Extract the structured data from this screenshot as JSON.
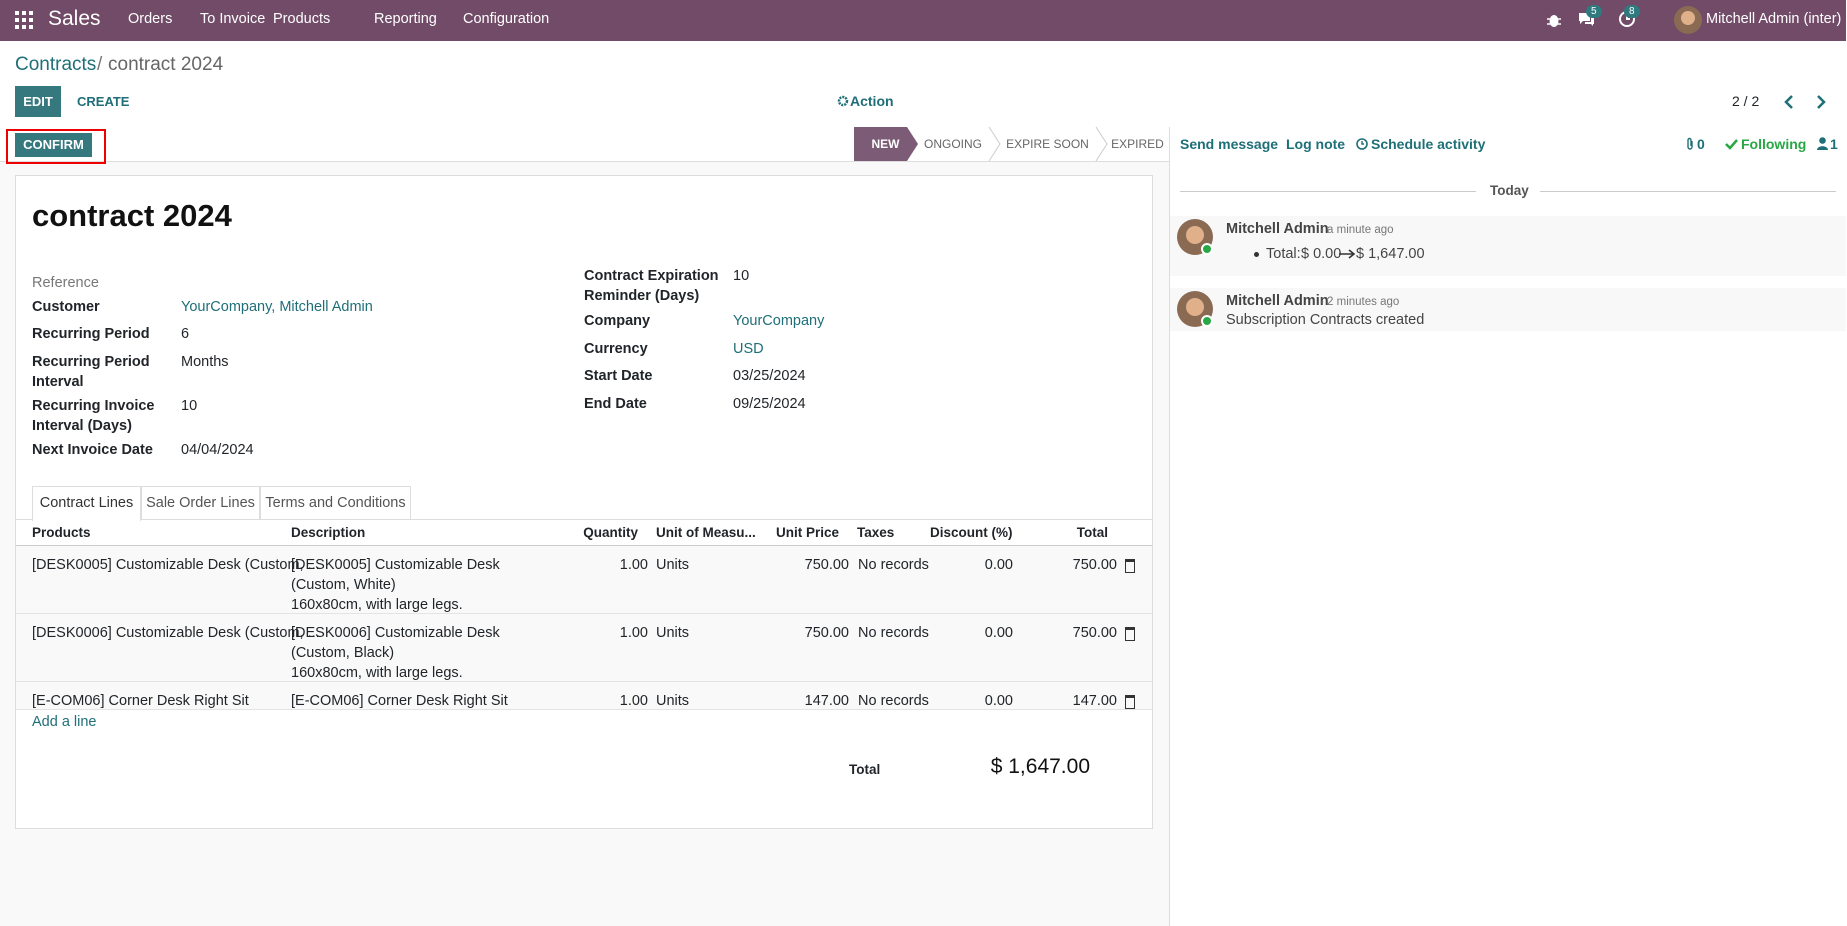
{
  "navbar": {
    "app": "Sales",
    "menu": [
      "Orders",
      "To Invoice",
      "Products",
      "Reporting",
      "Configuration"
    ],
    "messages_badge": "5",
    "activities_badge": "8",
    "user": "Mitchell Admin (inter)"
  },
  "breadcrumb": {
    "parent": "Contracts",
    "separator": "/",
    "current": "contract 2024"
  },
  "control_panel": {
    "edit": "EDIT",
    "create": "CREATE",
    "action": "Action",
    "pager": "2 / 2"
  },
  "statusbar": {
    "confirm": "CONFIRM",
    "stages": [
      "NEW",
      "ONGOING",
      "EXPIRE SOON",
      "EXPIRED"
    ],
    "active_stage": 0
  },
  "form": {
    "title": "contract 2024",
    "left_fields": [
      {
        "label": "Reference"
      },
      {
        "label": "Customer",
        "value": "YourCompany, Mitchell Admin",
        "link": true
      },
      {
        "label": "Recurring Period",
        "value": "6"
      },
      {
        "label": "Recurring Period Interval",
        "value": "Months"
      },
      {
        "label": "Recurring Invoice Interval (Days)",
        "value": "10"
      },
      {
        "label": "Next Invoice Date",
        "value": "04/04/2024"
      }
    ],
    "right_fields": [
      {
        "label": "Contract Expiration Reminder (Days)",
        "value": "10"
      },
      {
        "label": "Company",
        "value": "YourCompany",
        "link": true
      },
      {
        "label": "Currency",
        "value": "USD",
        "link": true
      },
      {
        "label": "Start Date",
        "value": "03/25/2024"
      },
      {
        "label": "End Date",
        "value": "09/25/2024"
      }
    ],
    "tabs": [
      "Contract Lines",
      "Sale Order Lines",
      "Terms and Conditions"
    ],
    "active_tab": 0,
    "lines": {
      "columns": [
        "Products",
        "Description",
        "Quantity",
        "Unit of Measu...",
        "Unit Price",
        "Taxes",
        "Discount (%)",
        "Total"
      ],
      "rows": [
        {
          "product": "[DESK0005] Customizable Desk (Custom, ...",
          "description": [
            "[DESK0005] Customizable Desk (Custom, White)",
            "160x80cm, with large legs."
          ],
          "quantity": "1.00",
          "uom": "Units",
          "unit_price": "750.00",
          "taxes": "No records",
          "discount": "0.00",
          "total": "750.00"
        },
        {
          "product": "[DESK0006] Customizable Desk (Custom, ...",
          "description": [
            "[DESK0006] Customizable Desk (Custom, Black)",
            "160x80cm, with large legs."
          ],
          "quantity": "1.00",
          "uom": "Units",
          "unit_price": "750.00",
          "taxes": "No records",
          "discount": "0.00",
          "total": "750.00"
        },
        {
          "product": "[E-COM06] Corner Desk Right Sit",
          "description": [
            "[E-COM06] Corner Desk Right Sit"
          ],
          "quantity": "1.00",
          "uom": "Units",
          "unit_price": "147.00",
          "taxes": "No records",
          "discount": "0.00",
          "total": "147.00"
        }
      ],
      "add_line": "Add a line"
    },
    "total": {
      "label": "Total",
      "amount": "$ 1,647.00"
    }
  },
  "chatter": {
    "send_message": "Send message",
    "log_note": "Log note",
    "schedule_activity": "Schedule activity",
    "attachments": "0",
    "following": "Following",
    "followers": "1",
    "date_separator": "Today",
    "messages": [
      {
        "author": "Mitchell Admin",
        "time": "- a minute ago",
        "tracking": {
          "field": "Total:",
          "old": "$ 0.00",
          "new": "$ 1,647.00"
        }
      },
      {
        "author": "Mitchell Admin",
        "time": "- 2 minutes ago",
        "body": "Subscription Contracts created"
      }
    ]
  }
}
